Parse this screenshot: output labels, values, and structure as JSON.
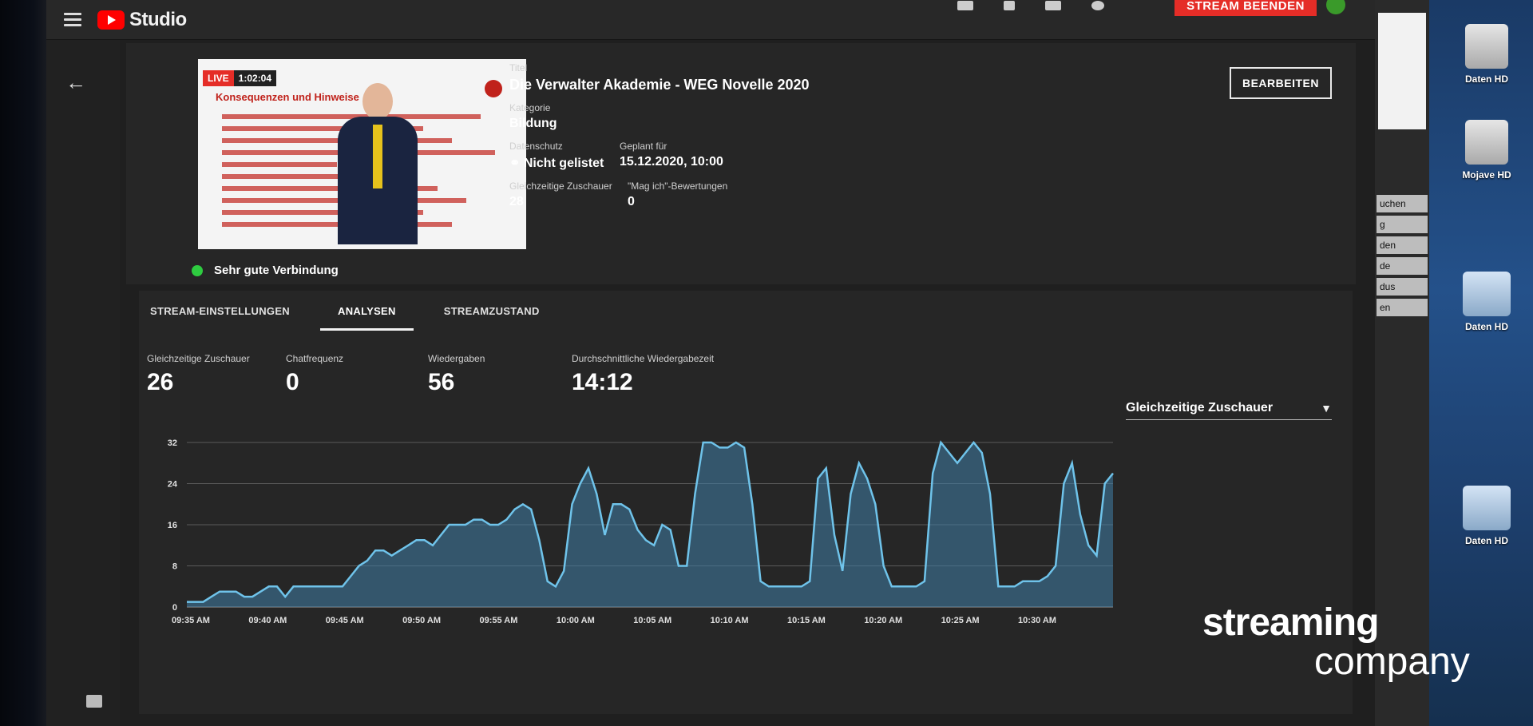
{
  "app": {
    "logo_text": "Studio"
  },
  "topbar": {
    "end_stream_label": "STREAM BEENDEN"
  },
  "video": {
    "live_label": "LIVE",
    "elapsed": "1:02:04",
    "slide_heading": "Konsequenzen und Hinweise",
    "connection_label": "Sehr gute Verbindung"
  },
  "details": {
    "title_label": "Titel",
    "title_value": "Die Verwalter Akademie - WEG Novelle 2020",
    "category_label": "Kategorie",
    "category_value": "Bildung",
    "privacy_label": "Datenschutz",
    "privacy_value": "Nicht gelistet",
    "scheduled_label": "Geplant für",
    "scheduled_value": "15.12.2020, 10:00",
    "viewers_label": "Gleichzeitige Zuschauer",
    "viewers_value": "28",
    "likes_label": "\"Mag ich\"-Bewertungen",
    "likes_value": "0",
    "edit_label": "BEARBEITEN"
  },
  "tabs": [
    "STREAM-EINSTELLUNGEN",
    "ANALYSEN",
    "STREAMZUSTAND"
  ],
  "stats": [
    {
      "label": "Gleichzeitige Zuschauer",
      "value": "26"
    },
    {
      "label": "Chatfrequenz",
      "value": "0"
    },
    {
      "label": "Wiedergaben",
      "value": "56"
    },
    {
      "label": "Durchschnittliche Wiedergabezeit",
      "value": "14:12"
    }
  ],
  "metric_select": {
    "value": "Gleichzeitige Zuschauer"
  },
  "chart_data": {
    "type": "area",
    "title": "",
    "xlabel": "",
    "ylabel": "",
    "ylim": [
      0,
      32
    ],
    "yticks": [
      0,
      8,
      16,
      24,
      32
    ],
    "x_ticks": [
      "09:35 AM",
      "09:40 AM",
      "09:45 AM",
      "09:50 AM",
      "09:55 AM",
      "10:00 AM",
      "10:05 AM",
      "10:10 AM",
      "10:15 AM",
      "10:20 AM",
      "10:25 AM",
      "10:30 AM"
    ],
    "grid": true,
    "color": "#6fc3ea",
    "values": [
      1,
      1,
      1,
      2,
      3,
      3,
      3,
      2,
      2,
      3,
      4,
      4,
      2,
      4,
      4,
      4,
      4,
      4,
      4,
      4,
      6,
      8,
      9,
      11,
      11,
      10,
      11,
      12,
      13,
      13,
      12,
      14,
      16,
      16,
      16,
      17,
      17,
      16,
      16,
      17,
      19,
      20,
      19,
      13,
      5,
      4,
      7,
      20,
      24,
      27,
      22,
      14,
      20,
      20,
      19,
      15,
      13,
      12,
      16,
      15,
      8,
      8,
      22,
      32,
      32,
      31,
      31,
      32,
      31,
      20,
      5,
      4,
      4,
      4,
      4,
      4,
      5,
      25,
      27,
      14,
      7,
      22,
      28,
      25,
      20,
      8,
      4,
      4,
      4,
      4,
      5,
      26,
      32,
      30,
      28,
      30,
      32,
      30,
      22,
      4,
      4,
      4,
      5,
      5,
      5,
      6,
      8,
      24,
      28,
      18,
      12,
      10,
      24,
      26
    ]
  },
  "desktop": {
    "icons": [
      "Daten HD",
      "Mojave HD",
      "Daten HD",
      "Daten HD"
    ],
    "side_buttons": [
      "uchen",
      "g",
      "den",
      "de",
      "dus",
      "en"
    ]
  },
  "watermark": {
    "line1": "streaming",
    "line2": "company"
  }
}
